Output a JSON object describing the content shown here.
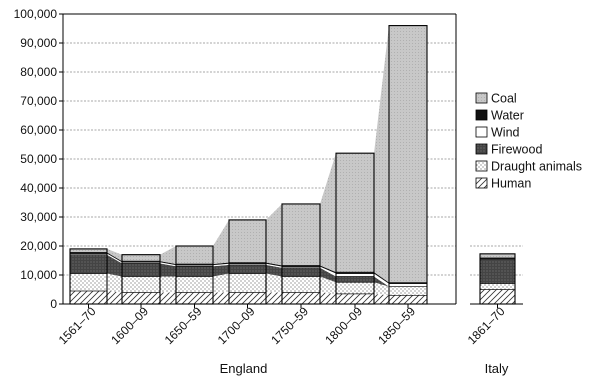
{
  "chart_data": {
    "type": "bar",
    "title": "",
    "ylabel": "",
    "ylim": [
      0,
      100000
    ],
    "yticks": [
      0,
      10000,
      20000,
      30000,
      40000,
      50000,
      60000,
      70000,
      80000,
      90000,
      100000
    ],
    "ytick_labels": [
      "0",
      "10,000",
      "20,000",
      "30,000",
      "40,000",
      "50,000",
      "60,000",
      "70,000",
      "80,000",
      "90,000",
      "100,000"
    ],
    "grid": true,
    "stacked": true,
    "legend_position": "right",
    "groups": [
      "England",
      "Italy"
    ],
    "categories": [
      "1561–70",
      "1600–09",
      "1650–59",
      "1700–09",
      "1750–59",
      "1800–09",
      "1850–59",
      "1861–70"
    ],
    "category_group": [
      "England",
      "England",
      "England",
      "England",
      "England",
      "England",
      "England",
      "Italy"
    ],
    "series": [
      {
        "name": "Human",
        "pattern": "hatch",
        "values": [
          4500,
          4000,
          4000,
          4000,
          4000,
          3500,
          3000,
          5000
        ]
      },
      {
        "name": "Draught animals",
        "pattern": "dots",
        "values": [
          6000,
          5500,
          5500,
          6500,
          5500,
          4000,
          3000,
          2000
        ]
      },
      {
        "name": "Firewood",
        "pattern": "dark",
        "values": [
          6500,
          4500,
          3500,
          3000,
          3000,
          2000,
          0,
          8500
        ]
      },
      {
        "name": "Wind",
        "pattern": "white",
        "values": [
          400,
          400,
          400,
          400,
          400,
          1000,
          1000,
          200
        ]
      },
      {
        "name": "Water",
        "pattern": "black",
        "values": [
          400,
          400,
          400,
          400,
          400,
          500,
          400,
          200
        ]
      },
      {
        "name": "Coal",
        "pattern": "light-gray",
        "values": [
          1200,
          2200,
          6200,
          14700,
          21200,
          41000,
          88600,
          1400
        ]
      }
    ],
    "legend_order": [
      "Coal",
      "Water",
      "Wind",
      "Firewood",
      "Draught animals",
      "Human"
    ]
  }
}
